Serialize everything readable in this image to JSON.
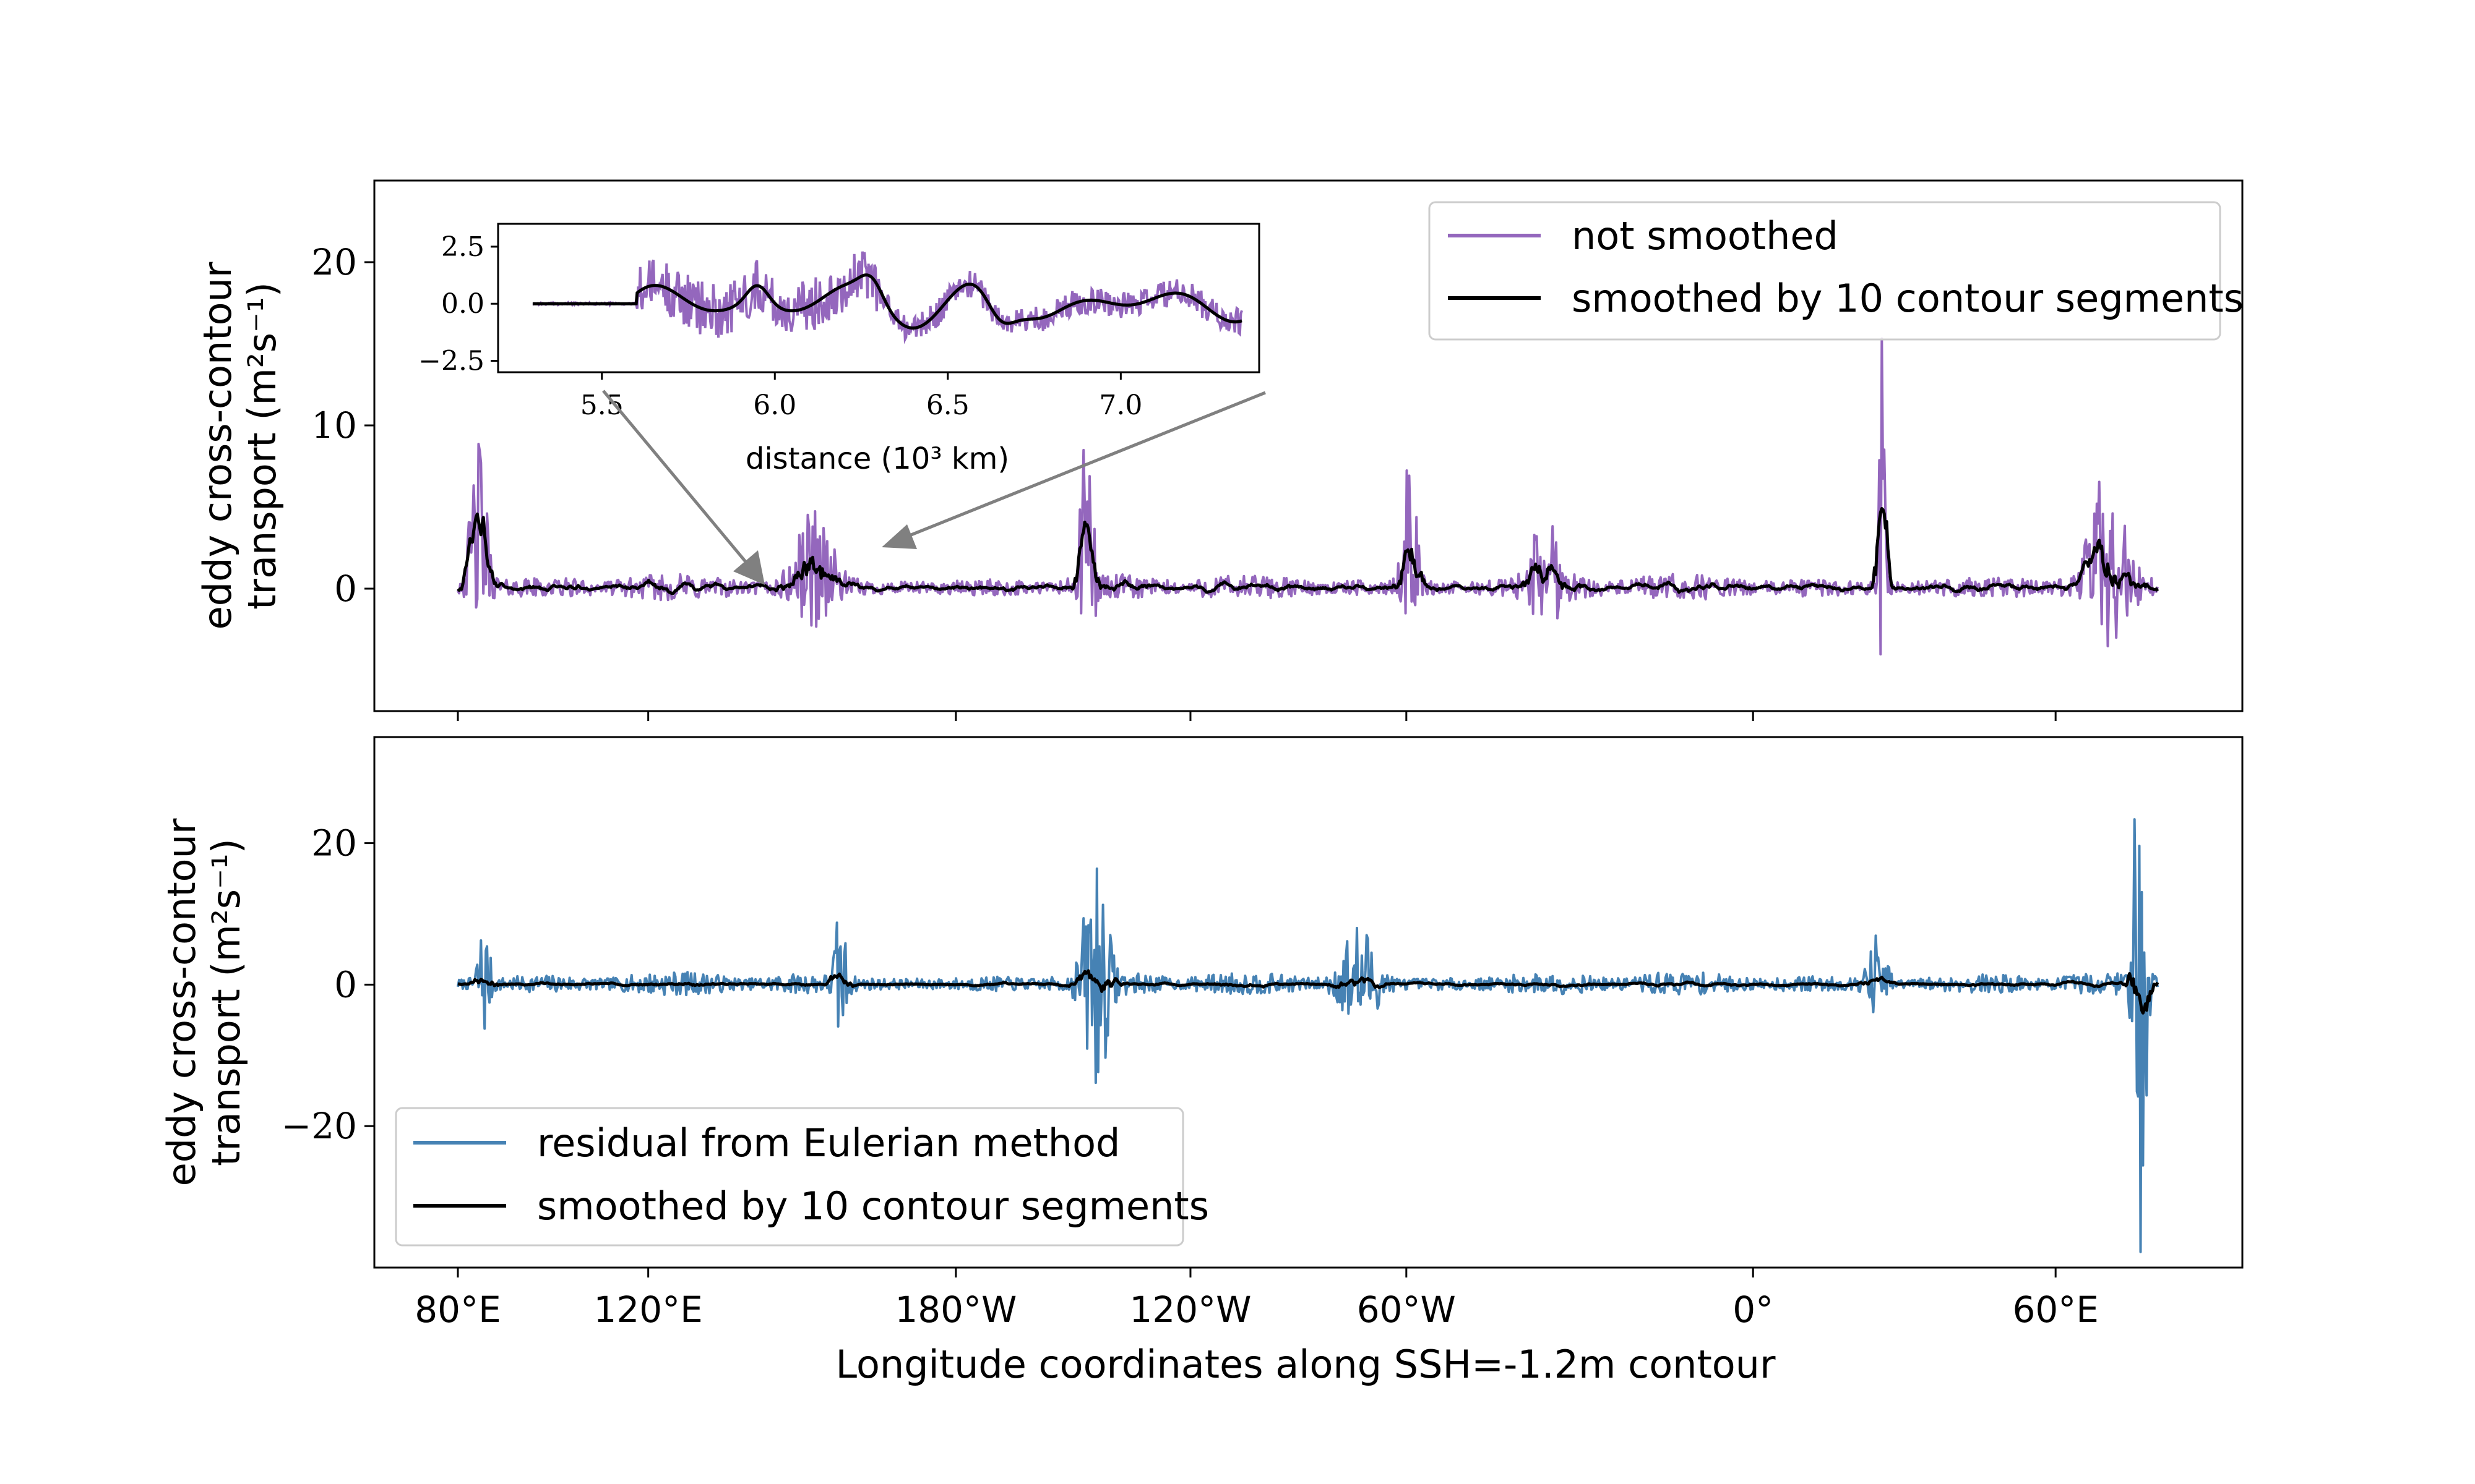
{
  "figure": {
    "top_panel": {
      "ylabel_line1": "eddy cross-contour",
      "ylabel_line2": "transport (m²s⁻¹)",
      "yticks": [
        "20",
        "10",
        "0"
      ],
      "yticks_values": [
        20,
        10,
        0
      ],
      "ylim": [
        -7.5,
        25
      ],
      "legend": [
        {
          "label": "not smoothed",
          "color": "#9467bd"
        },
        {
          "label": "smoothed by 10 contour segments",
          "color": "#000000"
        }
      ]
    },
    "inset": {
      "xlabel": "distance (10³ km)",
      "xticks": [
        "5.5",
        "6.0",
        "6.5",
        "7.0"
      ],
      "xticks_values": [
        5.5,
        6.0,
        6.5,
        7.0
      ],
      "yticks": [
        "2.5",
        "0.0",
        "−2.5"
      ],
      "yticks_values": [
        2.5,
        0.0,
        -2.5
      ],
      "xlim": [
        5.2,
        7.4
      ],
      "ylim": [
        -3.0,
        3.5
      ]
    },
    "bottom_panel": {
      "ylabel_line1": "eddy cross-contour",
      "ylabel_line2": "transport (m²s⁻¹)",
      "yticks": [
        "20",
        "0",
        "−20"
      ],
      "yticks_values": [
        20,
        0,
        -20
      ],
      "ylim": [
        -40,
        35
      ],
      "legend": [
        {
          "label": "residual from Eulerian method",
          "color": "#4682b4"
        },
        {
          "label": "smoothed by 10 contour segments",
          "color": "#000000"
        }
      ]
    },
    "xaxis": {
      "label": "Longitude coordinates along SSH=-1.2m contour",
      "ticks": [
        "80°E",
        "120°E",
        "180°W",
        "120°W",
        "60°W",
        "0°",
        "60°E"
      ],
      "tick_positions": [
        0,
        0.112,
        0.293,
        0.431,
        0.558,
        0.762,
        0.94
      ]
    }
  },
  "chart_data": [
    {
      "type": "line",
      "panel": "top",
      "ylabel": "eddy cross-contour transport (m²s⁻¹)",
      "xlabel": "Longitude coordinates along SSH=-1.2m contour",
      "ylim": [
        -7.5,
        25
      ],
      "series": [
        {
          "name": "not smoothed",
          "color": "#9467bd"
        },
        {
          "name": "smoothed by 10 contour segments",
          "color": "#000000"
        }
      ],
      "features": [
        {
          "x": 0.012,
          "amp": 8.5,
          "w": 0.006
        },
        {
          "x": 0.21,
          "amp": 3.0,
          "w": 0.012
        },
        {
          "x": 0.37,
          "amp": 7.0,
          "w": 0.004
        },
        {
          "x": 0.56,
          "amp": 7.5,
          "w": 0.005
        },
        {
          "x": 0.64,
          "amp": 2.5,
          "w": 0.01
        },
        {
          "x": 0.838,
          "amp": 24.0,
          "w": 0.002
        },
        {
          "x": 0.97,
          "amp": 4.0,
          "w": 0.012
        }
      ]
    },
    {
      "type": "line",
      "panel": "inset",
      "xlabel": "distance (10³ km)",
      "xlim": [
        5.2,
        7.4
      ],
      "ylim": [
        -3.0,
        3.5
      ],
      "series": [
        {
          "name": "not smoothed",
          "color": "#9467bd"
        },
        {
          "name": "smoothed by 10 contour segments",
          "color": "#000000"
        }
      ]
    },
    {
      "type": "line",
      "panel": "bottom",
      "ylabel": "eddy cross-contour transport (m²s⁻¹)",
      "xlabel": "Longitude coordinates along SSH=-1.2m contour",
      "ylim": [
        -40,
        35
      ],
      "series": [
        {
          "name": "residual from Eulerian method",
          "color": "#4682b4"
        },
        {
          "name": "smoothed by 10 contour segments",
          "color": "#000000"
        }
      ],
      "features": [
        {
          "x": 0.015,
          "amp": 12.0,
          "w": 0.004
        },
        {
          "x": 0.225,
          "amp": 9.0,
          "w": 0.004
        },
        {
          "x": 0.375,
          "amp": 13.0,
          "w": 0.008
        },
        {
          "x": 0.53,
          "amp": 10.0,
          "w": 0.012
        },
        {
          "x": 0.835,
          "amp": 10.0,
          "w": 0.006
        },
        {
          "x": 0.99,
          "amp": 35.0,
          "w": 0.004
        }
      ]
    }
  ]
}
